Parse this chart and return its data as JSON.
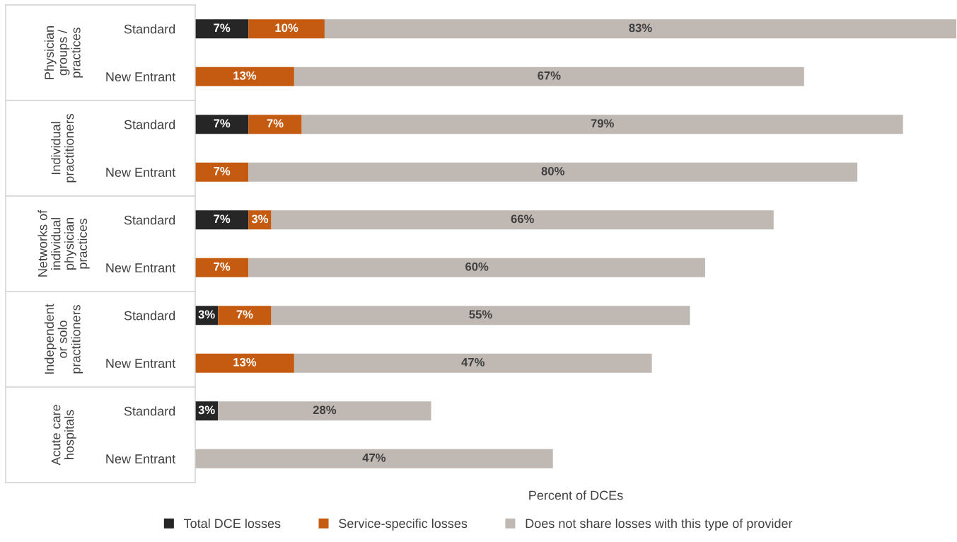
{
  "chart_data": {
    "type": "bar",
    "orientation": "horizontal",
    "stacked": true,
    "categories": [
      "Standard",
      "New Entrant",
      "Standard",
      "New Entrant",
      "Standard",
      "New Entrant",
      "Standard",
      "New Entrant",
      "Standard",
      "New Entrant"
    ],
    "annotations": [
      "Physician\ngroups /\npractices",
      "Individual\npractitioners",
      "Networks of\nindividual\nphysician\npractices",
      "Independent\nor solo\npractitioners",
      "Acute care\nhospitals"
    ],
    "xlabel": "Percent of DCEs",
    "series": [
      {
        "name": "Total DCE losses",
        "color": "#262626",
        "values": [
          7,
          null,
          7,
          null,
          7,
          null,
          3,
          null,
          3,
          null
        ],
        "value_labels": [
          "7%",
          null,
          "7%",
          null,
          "7%",
          null,
          "3%",
          null,
          "3%",
          null
        ]
      },
      {
        "name": "Service-specific losses",
        "color": "#c55a11",
        "values": [
          10,
          13,
          7,
          7,
          3,
          7,
          7,
          13,
          null,
          null
        ],
        "value_labels": [
          "10%",
          "13%",
          "7%",
          "7%",
          "3%",
          "7%",
          "7%",
          "13%",
          null,
          null
        ]
      },
      {
        "name": "Does not share losses with this type of provider",
        "color": "#bfb8b3",
        "values": [
          83,
          67,
          79,
          80,
          66,
          60,
          55,
          47,
          28,
          47
        ],
        "value_labels": [
          "83%",
          "67%",
          "79%",
          "80%",
          "66%",
          "60%",
          "55%",
          "47%",
          "28%",
          "47%"
        ]
      }
    ],
    "legend": "bottom",
    "grid": false
  }
}
